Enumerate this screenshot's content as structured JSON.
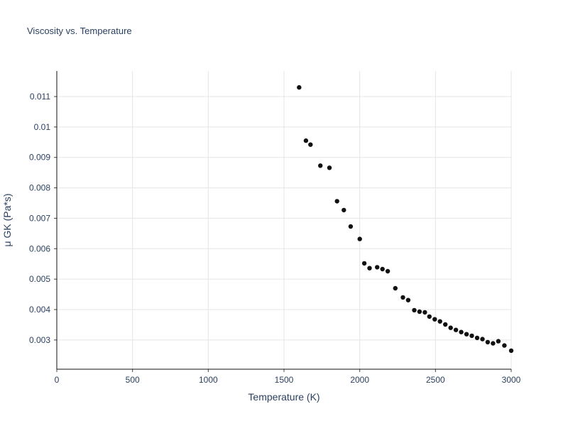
{
  "chart_data": {
    "type": "scatter",
    "title": "Viscosity vs. Temperature",
    "xlabel": "Temperature (K)",
    "ylabel": "μ GK (Pa*s)",
    "xlim": [
      0,
      3000
    ],
    "ylim": [
      0.00204,
      0.01184
    ],
    "xticks": [
      0,
      500,
      1000,
      1500,
      2000,
      2500,
      3000
    ],
    "xtick_labels": [
      "0",
      "500",
      "1000",
      "1500",
      "2000",
      "2500",
      "3000"
    ],
    "yticks": [
      0.003,
      0.004,
      0.005,
      0.006,
      0.007,
      0.008,
      0.009,
      0.01,
      0.011
    ],
    "ytick_labels": [
      "0.003",
      "0.004",
      "0.005",
      "0.006",
      "0.007",
      "0.008",
      "0.009",
      "0.01",
      "0.011"
    ],
    "grid": true,
    "legend": "none",
    "marker_color": "#111111",
    "marker_size": 3.2,
    "points": [
      [
        1600,
        0.0113
      ],
      [
        1645,
        0.00955
      ],
      [
        1675,
        0.00942
      ],
      [
        1740,
        0.00873
      ],
      [
        1800,
        0.00866
      ],
      [
        1850,
        0.00756
      ],
      [
        1895,
        0.00727
      ],
      [
        1940,
        0.00673
      ],
      [
        2000,
        0.00632
      ],
      [
        2030,
        0.00552
      ],
      [
        2065,
        0.00536
      ],
      [
        2115,
        0.00539
      ],
      [
        2150,
        0.00533
      ],
      [
        2185,
        0.00526
      ],
      [
        2235,
        0.0047
      ],
      [
        2285,
        0.0044
      ],
      [
        2320,
        0.00431
      ],
      [
        2360,
        0.00398
      ],
      [
        2395,
        0.00393
      ],
      [
        2430,
        0.00391
      ],
      [
        2460,
        0.00377
      ],
      [
        2495,
        0.00368
      ],
      [
        2530,
        0.00361
      ],
      [
        2565,
        0.00351
      ],
      [
        2600,
        0.0034
      ],
      [
        2635,
        0.00333
      ],
      [
        2670,
        0.00326
      ],
      [
        2705,
        0.00319
      ],
      [
        2740,
        0.00314
      ],
      [
        2775,
        0.00307
      ],
      [
        2810,
        0.00303
      ],
      [
        2845,
        0.00293
      ],
      [
        2880,
        0.00289
      ],
      [
        2915,
        0.00296
      ],
      [
        2955,
        0.00282
      ],
      [
        3000,
        0.00265
      ]
    ]
  }
}
